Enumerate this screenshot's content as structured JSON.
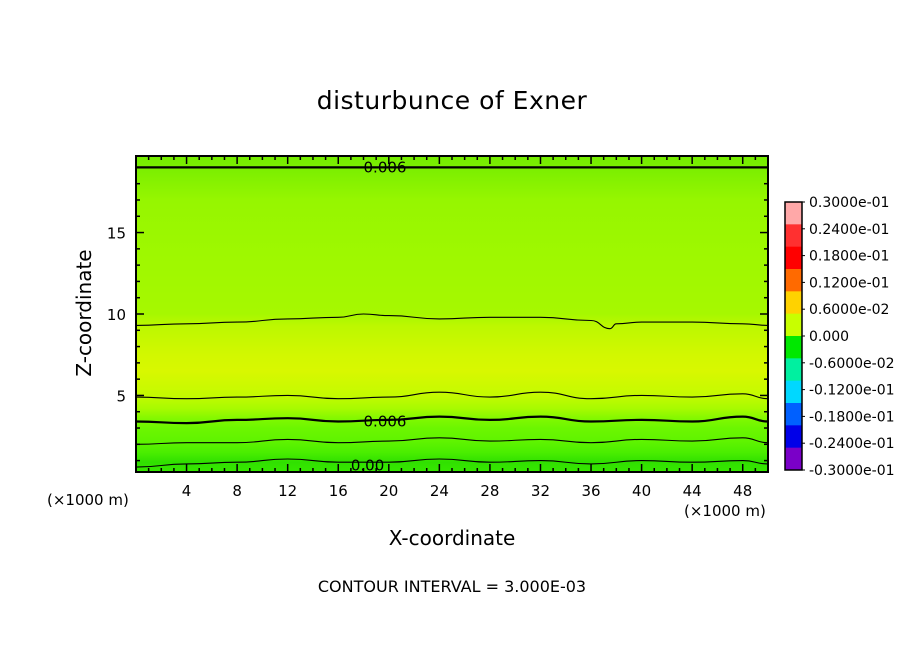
{
  "chart_data": {
    "type": "heatmap",
    "title": "disturbunce of Exner",
    "xlabel": "X-coordinate",
    "ylabel": "Z-coordinate",
    "x_unit_left": "(×1000 m)",
    "x_unit_right": "(×1000 m)",
    "contour_interval_text": "CONTOUR INTERVAL = 3.000E-03",
    "xlim": [
      0,
      50
    ],
    "ylim": [
      0.3,
      19.7
    ],
    "x_ticks": [
      "4",
      "8",
      "12",
      "16",
      "20",
      "24",
      "28",
      "32",
      "36",
      "40",
      "44",
      "48"
    ],
    "y_ticks": [
      "5",
      "10",
      "15"
    ],
    "contour_labels": [
      {
        "text": "0.006",
        "x": 18,
        "y": 19.0
      },
      {
        "text": "0.006",
        "x": 18,
        "y": 3.4
      },
      {
        "text": "0.00",
        "x": 17,
        "y": 0.7
      }
    ],
    "contours": [
      {
        "level": 0.003,
        "major": false,
        "points": [
          [
            0,
            0.6
          ],
          [
            4,
            0.8
          ],
          [
            8,
            0.9
          ],
          [
            12,
            1.1
          ],
          [
            16,
            0.9
          ],
          [
            20,
            0.9
          ],
          [
            24,
            1.1
          ],
          [
            28,
            0.9
          ],
          [
            32,
            1.0
          ],
          [
            36,
            0.8
          ],
          [
            40,
            1.0
          ],
          [
            44,
            0.9
          ],
          [
            48,
            1.0
          ],
          [
            50,
            0.8
          ]
        ]
      },
      {
        "level": 0.006,
        "major": false,
        "points": [
          [
            0,
            2.0
          ],
          [
            4,
            2.1
          ],
          [
            8,
            2.1
          ],
          [
            12,
            2.3
          ],
          [
            16,
            2.1
          ],
          [
            20,
            2.2
          ],
          [
            24,
            2.4
          ],
          [
            28,
            2.2
          ],
          [
            32,
            2.3
          ],
          [
            36,
            2.1
          ],
          [
            40,
            2.3
          ],
          [
            44,
            2.2
          ],
          [
            48,
            2.4
          ],
          [
            50,
            2.1
          ]
        ]
      },
      {
        "level": 0.006,
        "major": true,
        "points": [
          [
            0,
            3.4
          ],
          [
            4,
            3.3
          ],
          [
            8,
            3.5
          ],
          [
            12,
            3.6
          ],
          [
            16,
            3.4
          ],
          [
            20,
            3.5
          ],
          [
            24,
            3.7
          ],
          [
            28,
            3.5
          ],
          [
            32,
            3.7
          ],
          [
            36,
            3.4
          ],
          [
            40,
            3.5
          ],
          [
            44,
            3.4
          ],
          [
            48,
            3.7
          ],
          [
            50,
            3.4
          ]
        ]
      },
      {
        "level": 0.009,
        "major": false,
        "points": [
          [
            0,
            4.9
          ],
          [
            4,
            4.8
          ],
          [
            8,
            4.9
          ],
          [
            12,
            5.0
          ],
          [
            16,
            4.8
          ],
          [
            20,
            4.9
          ],
          [
            24,
            5.2
          ],
          [
            28,
            4.9
          ],
          [
            32,
            5.2
          ],
          [
            36,
            4.8
          ],
          [
            40,
            5.0
          ],
          [
            44,
            4.9
          ],
          [
            48,
            5.1
          ],
          [
            50,
            4.8
          ]
        ]
      },
      {
        "level": 0.009,
        "major": false,
        "points": [
          [
            0,
            9.3
          ],
          [
            4,
            9.4
          ],
          [
            8,
            9.5
          ],
          [
            12,
            9.7
          ],
          [
            16,
            9.8
          ],
          [
            18,
            10.0
          ],
          [
            20,
            9.9
          ],
          [
            24,
            9.7
          ],
          [
            28,
            9.8
          ],
          [
            32,
            9.8
          ],
          [
            36,
            9.6
          ],
          [
            37.5,
            9.1
          ],
          [
            38,
            9.4
          ],
          [
            40,
            9.5
          ],
          [
            44,
            9.5
          ],
          [
            48,
            9.4
          ],
          [
            50,
            9.3
          ]
        ]
      },
      {
        "level": 0.006,
        "major": true,
        "points": [
          [
            0,
            19.0
          ],
          [
            8,
            19.0
          ],
          [
            16,
            19.0
          ],
          [
            24,
            19.0
          ],
          [
            32,
            19.0
          ],
          [
            40,
            19.0
          ],
          [
            48,
            19.0
          ],
          [
            50,
            19.0
          ]
        ]
      }
    ],
    "field_colors": [
      {
        "z": 0.3,
        "color": "#36e800"
      },
      {
        "z": 0.9,
        "color": "#30e000"
      },
      {
        "z": 1.5,
        "color": "#4aee00"
      },
      {
        "z": 2.2,
        "color": "#60f400"
      },
      {
        "z": 3.0,
        "color": "#6cf600"
      },
      {
        "z": 3.5,
        "color": "#7ef800"
      },
      {
        "z": 4.2,
        "color": "#a8fa00"
      },
      {
        "z": 5.0,
        "color": "#c4fa00"
      },
      {
        "z": 6.5,
        "color": "#d8f800"
      },
      {
        "z": 7.5,
        "color": "#d2f800"
      },
      {
        "z": 9.3,
        "color": "#bcf800"
      },
      {
        "z": 10.0,
        "color": "#a6f800"
      },
      {
        "z": 13.0,
        "color": "#a0f800"
      },
      {
        "z": 17.0,
        "color": "#96f600"
      },
      {
        "z": 19.0,
        "color": "#7aee00"
      },
      {
        "z": 19.7,
        "color": "#74ec00"
      }
    ],
    "colorbar": {
      "labels": [
        "0.3000e-01",
        "0.2400e-01",
        "0.1800e-01",
        "0.1200e-01",
        "0.6000e-02",
        "0.000",
        "-0.6000e-02",
        "-0.1200e-01",
        "-0.1800e-01",
        "-0.2400e-01",
        "-0.3000e-01"
      ],
      "colors": [
        "#ffa8a8",
        "#ff3030",
        "#ff0000",
        "#ff6a00",
        "#ffd200",
        "#c8ff00",
        "#00e800",
        "#00f0a0",
        "#00d8ff",
        "#0060ff",
        "#0000e8",
        "#7a00c8"
      ]
    }
  }
}
